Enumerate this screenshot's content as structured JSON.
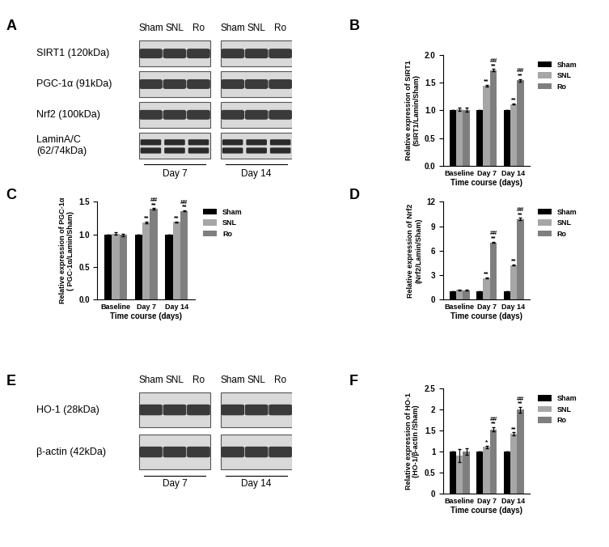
{
  "blots": [
    {
      "panel": "A",
      "lanes": [
        "Sham",
        "SNL",
        "Ro"
      ],
      "groups": [
        "Day 7",
        "Day 14"
      ],
      "rows": [
        "SIRT1 (120kDa)",
        "PGC-1α (91kDa)",
        "Nrf2 (100kDa)",
        "LaminA/C\n(62/74kDa)"
      ]
    },
    {
      "panel": "E",
      "lanes": [
        "Sham",
        "SNL",
        "Ro"
      ],
      "groups": [
        "Day 7",
        "Day 14"
      ],
      "rows": [
        "HO-1 (28kDa)",
        "β-actin (42kDa)"
      ]
    }
  ],
  "chart_data": [
    {
      "type": "bar",
      "title": "B",
      "categories": [
        "Baseline",
        "Day 7",
        "Day 14"
      ],
      "x_label": "Time course (days)",
      "y_label": "Relative expression of SIRT1\n(SIRT1/Lamin/Sham)",
      "ylim": [
        0,
        2.0
      ],
      "yticks": [
        {
          "value": 0,
          "label": "0.0"
        },
        0.5,
        {
          "value": 1,
          "label": "1.0"
        },
        1.5,
        {
          "value": 2,
          "label": "2.0"
        }
      ],
      "legend": "upper left",
      "series": [
        {
          "name": "Sham",
          "color": "#000000",
          "values": [
            1,
            1,
            1
          ],
          "errors": [
            0,
            0,
            0
          ],
          "significance": [
            null,
            null,
            null
          ]
        },
        {
          "name": "SNL",
          "color": "#a6a6a6",
          "values": [
            1.02,
            1.44,
            1.11
          ],
          "errors": [
            0.03,
            0.02,
            0.01
          ],
          "significance": [
            null,
            "**",
            "**"
          ]
        },
        {
          "name": "Ro",
          "color": "#7f7f7f",
          "values": [
            1.01,
            1.72,
            1.54
          ],
          "errors": [
            0.04,
            0.02,
            0.02
          ],
          "significance": [
            null,
            "##\n**",
            "##\n**"
          ]
        }
      ]
    },
    {
      "type": "bar",
      "title": "C",
      "categories": [
        "Baseline",
        "Day 7",
        "Day 14"
      ],
      "x_label": "Time course (days)",
      "y_label": "Relative expression of PGC-1α\n( PGC-1α/Lamin/Sham)",
      "ylim": [
        0,
        1.5
      ],
      "yticks": [
        {
          "value": 0,
          "label": "0.0"
        },
        0.5,
        {
          "value": 1,
          "label": "1.0"
        },
        1.5
      ],
      "legend": "upper left",
      "series": [
        {
          "name": "Sham",
          "color": "#000000",
          "values": [
            1,
            1,
            1
          ],
          "errors": [
            0,
            0,
            0
          ],
          "significance": [
            null,
            null,
            null
          ]
        },
        {
          "name": "SNL",
          "color": "#a6a6a6",
          "values": [
            1.01,
            1.18,
            1.19
          ],
          "errors": [
            0.02,
            0.01,
            0.01
          ],
          "significance": [
            null,
            "**",
            "**"
          ]
        },
        {
          "name": "Ro",
          "color": "#7f7f7f",
          "values": [
            0.99,
            1.39,
            1.36
          ],
          "errors": [
            0.02,
            0.01,
            0.01
          ],
          "significance": [
            null,
            "##\n**",
            "##\n**"
          ]
        }
      ]
    },
    {
      "type": "bar",
      "title": "D",
      "categories": [
        "Baseline",
        "Day 7",
        "Day 14"
      ],
      "x_label": "Time course (days)",
      "y_label": "Relative expression of Nrf2\n(Nrf2/Lamin/Sham)",
      "ylim": [
        0,
        12
      ],
      "yticks": [
        0,
        3,
        6,
        9,
        12
      ],
      "legend": "upper left",
      "series": [
        {
          "name": "Sham",
          "color": "#000000",
          "values": [
            1,
            1,
            1
          ],
          "errors": [
            0,
            0,
            0
          ],
          "significance": [
            null,
            null,
            null
          ]
        },
        {
          "name": "SNL",
          "color": "#a6a6a6",
          "values": [
            1.15,
            2.6,
            4.2
          ],
          "errors": [
            0.05,
            0.05,
            0.05
          ],
          "significance": [
            null,
            "**",
            "**"
          ]
        },
        {
          "name": "Ro",
          "color": "#7f7f7f",
          "values": [
            1.1,
            7.0,
            9.9
          ],
          "errors": [
            0.05,
            0.08,
            0.1
          ],
          "significance": [
            null,
            "##\n**",
            "##\n**"
          ]
        }
      ]
    },
    {
      "type": "bar",
      "title": "F",
      "categories": [
        "Baseline",
        "Day 7",
        "Day 14"
      ],
      "x_label": "Time course (days)",
      "y_label": "Relative expression of HO-1\n(HO-1/β-actin /Sham)",
      "ylim": [
        0,
        2.5
      ],
      "yticks": [
        0,
        0.5,
        1,
        1.5,
        2,
        2.5
      ],
      "legend": "upper left",
      "series": [
        {
          "name": "Sham",
          "color": "#000000",
          "values": [
            1,
            1,
            1
          ],
          "errors": [
            0,
            0,
            0
          ],
          "significance": [
            null,
            null,
            null
          ]
        },
        {
          "name": "SNL",
          "color": "#a6a6a6",
          "values": [
            0.9,
            1.11,
            1.42
          ],
          "errors": [
            0.15,
            0.03,
            0.03
          ],
          "significance": [
            null,
            "*",
            "**"
          ]
        },
        {
          "name": "Ro",
          "color": "#7f7f7f",
          "values": [
            1.0,
            1.52,
            1.99
          ],
          "errors": [
            0.08,
            0.05,
            0.06
          ],
          "significance": [
            null,
            "##\n**",
            "##\n**"
          ]
        }
      ]
    }
  ]
}
